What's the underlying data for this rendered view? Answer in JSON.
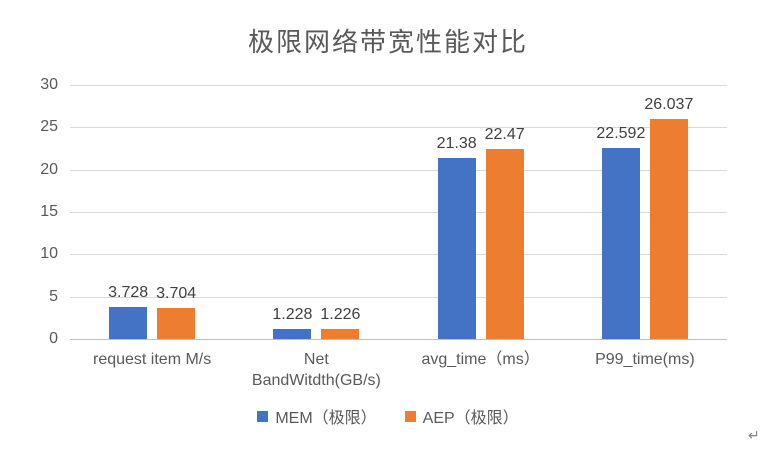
{
  "chart_data": {
    "type": "bar",
    "title": "极限网络带宽性能对比",
    "categories": [
      "request item M/s",
      "Net\nBandWitdth(GB/s)",
      "avg_time（ms）",
      "P99_time(ms)"
    ],
    "series": [
      {
        "name": "MEM（极限）",
        "color": "#4472C4",
        "values": [
          3.728,
          1.228,
          21.38,
          22.592
        ]
      },
      {
        "name": "AEP（极限）",
        "color": "#ED7D31",
        "values": [
          3.704,
          1.226,
          22.47,
          26.037
        ]
      }
    ],
    "data_labels": true,
    "xlabel": "",
    "ylabel": "",
    "ylim": [
      0,
      30
    ],
    "ytick_step": 5,
    "grid": true,
    "gridline_color": "#D9D9D9",
    "legend_position": "bottom"
  },
  "page": {
    "paragraph_mark": "↵"
  }
}
